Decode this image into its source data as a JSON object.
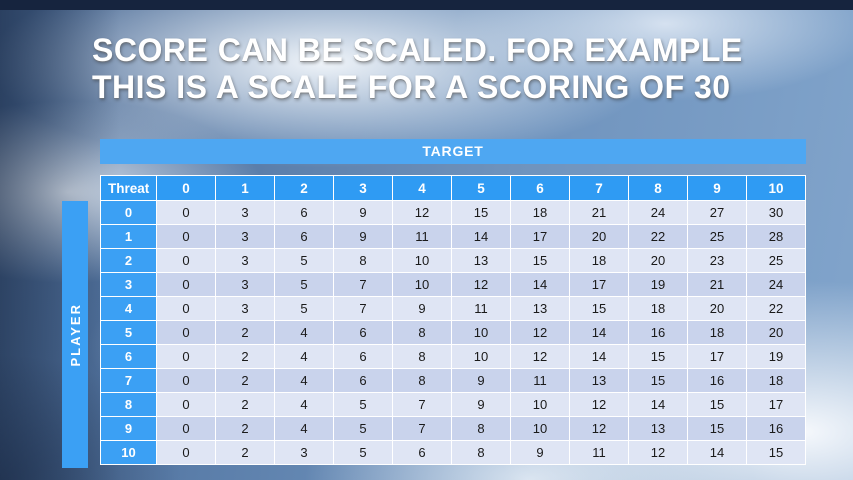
{
  "slide": {
    "title_line1": "SCORE CAN BE SCALED. FOR EXAMPLE",
    "title_line2": "THIS IS A SCALE FOR A SCORING OF 30"
  },
  "table": {
    "target_label": "TARGET",
    "player_label": "PLAYER",
    "threat_label": "Threat",
    "target_columns": [
      "0",
      "1",
      "2",
      "3",
      "4",
      "5",
      "6",
      "7",
      "8",
      "9",
      "10"
    ],
    "rows": [
      {
        "threat": "0",
        "values": [
          0,
          3,
          6,
          9,
          12,
          15,
          18,
          21,
          24,
          27,
          30
        ]
      },
      {
        "threat": "1",
        "values": [
          0,
          3,
          6,
          9,
          11,
          14,
          17,
          20,
          22,
          25,
          28
        ]
      },
      {
        "threat": "2",
        "values": [
          0,
          3,
          5,
          8,
          10,
          13,
          15,
          18,
          20,
          23,
          25
        ]
      },
      {
        "threat": "3",
        "values": [
          0,
          3,
          5,
          7,
          10,
          12,
          14,
          17,
          19,
          21,
          24
        ]
      },
      {
        "threat": "4",
        "values": [
          0,
          3,
          5,
          7,
          9,
          11,
          13,
          15,
          18,
          20,
          22
        ]
      },
      {
        "threat": "5",
        "values": [
          0,
          2,
          4,
          6,
          8,
          10,
          12,
          14,
          16,
          18,
          20
        ]
      },
      {
        "threat": "6",
        "values": [
          0,
          2,
          4,
          6,
          8,
          10,
          12,
          14,
          15,
          17,
          19
        ]
      },
      {
        "threat": "7",
        "values": [
          0,
          2,
          4,
          6,
          8,
          9,
          11,
          13,
          15,
          16,
          18
        ]
      },
      {
        "threat": "8",
        "values": [
          0,
          2,
          4,
          5,
          7,
          9,
          10,
          12,
          14,
          15,
          17
        ]
      },
      {
        "threat": "9",
        "values": [
          0,
          2,
          4,
          5,
          7,
          8,
          10,
          12,
          13,
          15,
          16
        ]
      },
      {
        "threat": "10",
        "values": [
          0,
          2,
          3,
          5,
          6,
          8,
          9,
          11,
          12,
          14,
          15
        ]
      }
    ]
  },
  "colors": {
    "header_blue": "#2f9bf3",
    "target_bar_blue": "#4ea7f2",
    "label_blue": "#3ba0f4",
    "row_band_light": "#dfe5f4",
    "row_band_dark": "#c9d3ec",
    "data_text": "#1a1a1a",
    "title_text": "#ffffff",
    "top_strip": "#16243e"
  }
}
